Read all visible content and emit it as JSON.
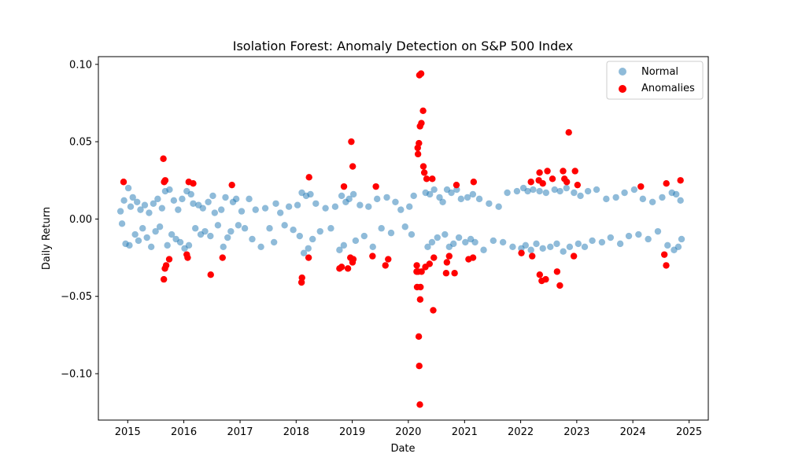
{
  "chart_data": {
    "type": "scatter",
    "title": "Isolation Forest: Anomaly Detection on S&P 500 Index",
    "xlabel": "Date",
    "ylabel": "Daily Return",
    "xlim": [
      "2014-06-24",
      "2025-05-06"
    ],
    "ylim": [
      -0.13,
      0.105
    ],
    "x_ticks": [
      2015,
      2016,
      2017,
      2018,
      2019,
      2020,
      2021,
      2022,
      2023,
      2024,
      2025
    ],
    "x_tick_labels": [
      "2015",
      "2016",
      "2017",
      "2018",
      "2019",
      "2020",
      "2021",
      "2022",
      "2023",
      "2024",
      "2025"
    ],
    "y_ticks": [
      -0.1,
      -0.05,
      0.0,
      0.05,
      0.1
    ],
    "y_tick_labels": [
      "−0.10",
      "−0.05",
      "0.00",
      "0.05",
      "0.10"
    ],
    "grid": false,
    "legend_position": "top-right",
    "series": [
      {
        "name": "Normal",
        "color": "#1f77b4",
        "alpha": 0.5,
        "marker": "circle",
        "points": [
          [
            "2014-11-15",
            0.005
          ],
          [
            "2014-11-25",
            -0.003
          ],
          [
            "2014-12-08",
            0.012
          ],
          [
            "2014-12-18",
            -0.016
          ],
          [
            "2015-01-05",
            0.02
          ],
          [
            "2015-01-12",
            -0.017
          ],
          [
            "2015-01-20",
            0.008
          ],
          [
            "2015-02-03",
            0.014
          ],
          [
            "2015-02-18",
            -0.01
          ],
          [
            "2015-03-03",
            0.011
          ],
          [
            "2015-03-12",
            -0.014
          ],
          [
            "2015-03-25",
            0.006
          ],
          [
            "2015-04-08",
            -0.006
          ],
          [
            "2015-04-22",
            0.009
          ],
          [
            "2015-05-06",
            -0.012
          ],
          [
            "2015-05-20",
            0.004
          ],
          [
            "2015-06-03",
            -0.018
          ],
          [
            "2015-06-17",
            0.01
          ],
          [
            "2015-07-01",
            -0.008
          ],
          [
            "2015-07-15",
            0.013
          ],
          [
            "2015-07-29",
            -0.005
          ],
          [
            "2015-08-12",
            0.007
          ],
          [
            "2015-09-02",
            0.018
          ],
          [
            "2015-09-16",
            -0.017
          ],
          [
            "2015-09-30",
            0.019
          ],
          [
            "2015-10-14",
            -0.01
          ],
          [
            "2015-10-28",
            0.012
          ],
          [
            "2015-11-11",
            -0.013
          ],
          [
            "2015-11-25",
            0.006
          ],
          [
            "2015-12-09",
            -0.015
          ],
          [
            "2015-12-21",
            0.013
          ],
          [
            "2016-01-06",
            -0.019
          ],
          [
            "2016-01-20",
            0.018
          ],
          [
            "2016-02-03",
            -0.017
          ],
          [
            "2016-02-17",
            0.016
          ],
          [
            "2016-03-02",
            0.01
          ],
          [
            "2016-03-16",
            -0.006
          ],
          [
            "2016-04-06",
            0.009
          ],
          [
            "2016-04-20",
            -0.01
          ],
          [
            "2016-05-04",
            0.007
          ],
          [
            "2016-05-18",
            -0.008
          ],
          [
            "2016-06-08",
            0.011
          ],
          [
            "2016-06-22",
            -0.011
          ],
          [
            "2016-07-08",
            0.015
          ],
          [
            "2016-07-20",
            0.004
          ],
          [
            "2016-08-10",
            -0.004
          ],
          [
            "2016-09-01",
            0.006
          ],
          [
            "2016-09-14",
            -0.018
          ],
          [
            "2016-09-28",
            0.014
          ],
          [
            "2016-10-12",
            -0.012
          ],
          [
            "2016-11-02",
            -0.008
          ],
          [
            "2016-11-16",
            0.011
          ],
          [
            "2016-12-07",
            0.013
          ],
          [
            "2016-12-21",
            -0.004
          ],
          [
            "2017-01-11",
            0.005
          ],
          [
            "2017-02-01",
            -0.006
          ],
          [
            "2017-03-01",
            0.013
          ],
          [
            "2017-03-21",
            -0.013
          ],
          [
            "2017-04-12",
            0.006
          ],
          [
            "2017-05-17",
            -0.018
          ],
          [
            "2017-06-14",
            0.007
          ],
          [
            "2017-07-12",
            -0.006
          ],
          [
            "2017-08-10",
            -0.015
          ],
          [
            "2017-08-22",
            0.01
          ],
          [
            "2017-09-20",
            0.004
          ],
          [
            "2017-10-18",
            -0.004
          ],
          [
            "2017-11-15",
            0.008
          ],
          [
            "2017-12-13",
            -0.007
          ],
          [
            "2018-01-10",
            0.009
          ],
          [
            "2018-01-24",
            -0.011
          ],
          [
            "2018-02-07",
            0.017
          ],
          [
            "2018-02-20",
            -0.022
          ],
          [
            "2018-03-07",
            0.015
          ],
          [
            "2018-03-21",
            -0.019
          ],
          [
            "2018-04-04",
            0.016
          ],
          [
            "2018-04-18",
            -0.013
          ],
          [
            "2018-05-09",
            0.01
          ],
          [
            "2018-06-06",
            -0.008
          ],
          [
            "2018-07-11",
            0.007
          ],
          [
            "2018-08-15",
            -0.006
          ],
          [
            "2018-09-12",
            0.008
          ],
          [
            "2018-10-10",
            -0.02
          ],
          [
            "2018-10-24",
            0.015
          ],
          [
            "2018-11-07",
            -0.017
          ],
          [
            "2018-11-20",
            0.011
          ],
          [
            "2018-12-12",
            0.013
          ],
          [
            "2019-01-09",
            0.016
          ],
          [
            "2019-01-23",
            -0.014
          ],
          [
            "2019-02-20",
            0.009
          ],
          [
            "2019-03-20",
            -0.011
          ],
          [
            "2019-04-17",
            0.008
          ],
          [
            "2019-05-15",
            -0.018
          ],
          [
            "2019-06-12",
            0.013
          ],
          [
            "2019-07-10",
            -0.006
          ],
          [
            "2019-08-14",
            0.014
          ],
          [
            "2019-09-11",
            -0.009
          ],
          [
            "2019-10-09",
            0.011
          ],
          [
            "2019-11-13",
            0.006
          ],
          [
            "2019-12-11",
            -0.005
          ],
          [
            "2020-01-08",
            0.008
          ],
          [
            "2020-01-22",
            -0.01
          ],
          [
            "2020-02-05",
            0.015
          ],
          [
            "2020-04-22",
            0.017
          ],
          [
            "2020-05-06",
            -0.018
          ],
          [
            "2020-05-20",
            0.016
          ],
          [
            "2020-06-03",
            -0.015
          ],
          [
            "2020-06-17",
            0.019
          ],
          [
            "2020-07-08",
            -0.012
          ],
          [
            "2020-07-22",
            0.014
          ],
          [
            "2020-08-12",
            0.011
          ],
          [
            "2020-08-26",
            -0.01
          ],
          [
            "2020-09-09",
            0.019
          ],
          [
            "2020-09-23",
            -0.018
          ],
          [
            "2020-10-07",
            0.017
          ],
          [
            "2020-10-21",
            -0.016
          ],
          [
            "2020-11-11",
            0.019
          ],
          [
            "2020-11-25",
            -0.012
          ],
          [
            "2020-12-09",
            0.013
          ],
          [
            "2021-01-06",
            -0.015
          ],
          [
            "2021-01-20",
            0.014
          ],
          [
            "2021-02-10",
            -0.013
          ],
          [
            "2021-02-24",
            0.016
          ],
          [
            "2021-03-10",
            -0.015
          ],
          [
            "2021-04-07",
            0.013
          ],
          [
            "2021-05-05",
            -0.02
          ],
          [
            "2021-06-09",
            0.01
          ],
          [
            "2021-07-07",
            -0.014
          ],
          [
            "2021-08-11",
            0.008
          ],
          [
            "2021-09-08",
            -0.015
          ],
          [
            "2021-10-06",
            0.017
          ],
          [
            "2021-11-10",
            -0.018
          ],
          [
            "2021-12-08",
            0.018
          ],
          [
            "2022-01-05",
            -0.019
          ],
          [
            "2022-01-19",
            0.02
          ],
          [
            "2022-02-02",
            -0.017
          ],
          [
            "2022-02-16",
            0.018
          ],
          [
            "2022-03-09",
            -0.02
          ],
          [
            "2022-03-23",
            0.019
          ],
          [
            "2022-04-13",
            -0.016
          ],
          [
            "2022-05-04",
            0.018
          ],
          [
            "2022-05-25",
            -0.019
          ],
          [
            "2022-06-15",
            0.017
          ],
          [
            "2022-07-13",
            -0.018
          ],
          [
            "2022-08-10",
            0.019
          ],
          [
            "2022-08-24",
            -0.016
          ],
          [
            "2022-09-14",
            0.018
          ],
          [
            "2022-10-05",
            -0.021
          ],
          [
            "2022-10-26",
            0.02
          ],
          [
            "2022-11-16",
            -0.018
          ],
          [
            "2022-12-14",
            0.017
          ],
          [
            "2023-01-11",
            -0.016
          ],
          [
            "2023-01-25",
            0.015
          ],
          [
            "2023-02-22",
            -0.018
          ],
          [
            "2023-03-15",
            0.018
          ],
          [
            "2023-04-12",
            -0.014
          ],
          [
            "2023-05-10",
            0.019
          ],
          [
            "2023-06-14",
            -0.015
          ],
          [
            "2023-07-12",
            0.013
          ],
          [
            "2023-08-09",
            -0.012
          ],
          [
            "2023-09-13",
            0.014
          ],
          [
            "2023-10-11",
            -0.016
          ],
          [
            "2023-11-08",
            0.017
          ],
          [
            "2023-12-06",
            -0.011
          ],
          [
            "2024-01-10",
            0.019
          ],
          [
            "2024-02-07",
            -0.01
          ],
          [
            "2024-03-06",
            0.013
          ],
          [
            "2024-04-10",
            -0.013
          ],
          [
            "2024-05-08",
            0.011
          ],
          [
            "2024-06-12",
            -0.008
          ],
          [
            "2024-07-10",
            0.014
          ],
          [
            "2024-08-14",
            -0.017
          ],
          [
            "2024-09-11",
            0.017
          ],
          [
            "2024-09-25",
            -0.02
          ],
          [
            "2024-10-09",
            0.016
          ],
          [
            "2024-10-23",
            -0.018
          ],
          [
            "2024-11-06",
            0.012
          ],
          [
            "2024-11-13",
            -0.013
          ]
        ]
      },
      {
        "name": "Anomalies",
        "color": "#ff0000",
        "alpha": 1.0,
        "marker": "circle",
        "points": [
          [
            "2014-12-05",
            0.024
          ],
          [
            "2015-08-21",
            0.039
          ],
          [
            "2015-08-24",
            -0.039
          ],
          [
            "2015-08-26",
            0.024
          ],
          [
            "2015-08-31",
            -0.032
          ],
          [
            "2015-09-02",
            0.025
          ],
          [
            "2015-09-08",
            -0.03
          ],
          [
            "2015-09-28",
            -0.026
          ],
          [
            "2016-01-20",
            -0.023
          ],
          [
            "2016-01-26",
            -0.025
          ],
          [
            "2016-02-02",
            0.024
          ],
          [
            "2016-03-02",
            0.023
          ],
          [
            "2016-06-24",
            -0.036
          ],
          [
            "2016-09-09",
            -0.025
          ],
          [
            "2016-11-09",
            0.022
          ],
          [
            "2018-02-05",
            -0.041
          ],
          [
            "2018-02-08",
            -0.038
          ],
          [
            "2018-03-23",
            -0.025
          ],
          [
            "2018-03-26",
            0.027
          ],
          [
            "2018-10-10",
            -0.032
          ],
          [
            "2018-10-24",
            -0.031
          ],
          [
            "2018-11-08",
            0.021
          ],
          [
            "2018-12-04",
            -0.032
          ],
          [
            "2018-12-20",
            -0.025
          ],
          [
            "2018-12-26",
            0.05
          ],
          [
            "2019-01-03",
            -0.028
          ],
          [
            "2019-01-04",
            0.034
          ],
          [
            "2019-01-08",
            -0.026
          ],
          [
            "2019-05-13",
            -0.024
          ],
          [
            "2019-06-04",
            0.021
          ],
          [
            "2019-08-05",
            -0.03
          ],
          [
            "2019-08-23",
            -0.026
          ],
          [
            "2020-02-27",
            -0.044
          ],
          [
            "2020-03-02",
            0.046
          ],
          [
            "2020-03-09",
            -0.076
          ],
          [
            "2020-03-10",
            0.049
          ],
          [
            "2020-03-12",
            -0.095
          ],
          [
            "2020-03-13",
            0.093
          ],
          [
            "2020-03-16",
            -0.12
          ],
          [
            "2020-03-17",
            0.06
          ],
          [
            "2020-03-24",
            0.094
          ],
          [
            "2020-03-26",
            0.062
          ],
          [
            "2020-04-06",
            0.07
          ],
          [
            "2020-02-24",
            -0.034
          ],
          [
            "2020-02-25",
            -0.03
          ],
          [
            "2020-03-04",
            0.042
          ],
          [
            "2020-03-05",
            -0.034
          ],
          [
            "2020-03-18",
            -0.052
          ],
          [
            "2020-03-20",
            -0.044
          ],
          [
            "2020-03-27",
            -0.034
          ],
          [
            "2020-04-08",
            0.034
          ],
          [
            "2020-04-14",
            0.03
          ],
          [
            "2020-04-21",
            -0.031
          ],
          [
            "2020-04-29",
            0.026
          ],
          [
            "2020-05-18",
            -0.029
          ],
          [
            "2020-06-11",
            -0.059
          ],
          [
            "2020-06-05",
            0.026
          ],
          [
            "2020-06-15",
            -0.025
          ],
          [
            "2020-09-03",
            -0.035
          ],
          [
            "2020-09-08",
            -0.028
          ],
          [
            "2020-09-23",
            -0.024
          ],
          [
            "2020-10-28",
            -0.035
          ],
          [
            "2020-11-09",
            0.022
          ],
          [
            "2021-01-27",
            -0.026
          ],
          [
            "2021-02-25",
            -0.025
          ],
          [
            "2021-03-01",
            0.024
          ],
          [
            "2022-01-06",
            -0.022
          ],
          [
            "2022-03-09",
            0.024
          ],
          [
            "2022-03-17",
            -0.024
          ],
          [
            "2022-04-29",
            0.025
          ],
          [
            "2022-05-04",
            0.03
          ],
          [
            "2022-05-05",
            -0.036
          ],
          [
            "2022-05-18",
            -0.04
          ],
          [
            "2022-05-25",
            0.023
          ],
          [
            "2022-06-13",
            -0.039
          ],
          [
            "2022-06-24",
            0.031
          ],
          [
            "2022-07-27",
            0.026
          ],
          [
            "2022-08-26",
            -0.034
          ],
          [
            "2022-09-13",
            -0.043
          ],
          [
            "2022-10-04",
            0.031
          ],
          [
            "2022-10-13",
            0.026
          ],
          [
            "2022-10-28",
            0.024
          ],
          [
            "2022-11-10",
            0.056
          ],
          [
            "2022-12-13",
            -0.024
          ],
          [
            "2022-12-21",
            0.031
          ],
          [
            "2023-01-06",
            0.022
          ],
          [
            "2024-02-22",
            0.021
          ],
          [
            "2024-08-05",
            -0.03
          ],
          [
            "2024-08-06",
            0.023
          ],
          [
            "2024-07-24",
            -0.023
          ],
          [
            "2024-11-06",
            0.025
          ]
        ]
      }
    ]
  }
}
